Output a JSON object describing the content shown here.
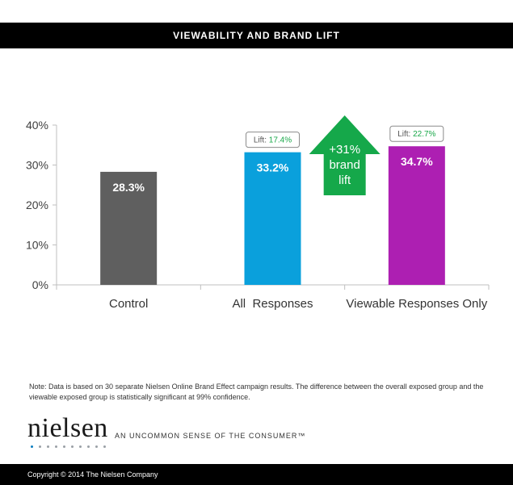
{
  "header": {
    "title": "VIEWABILITY AND BRAND LIFT"
  },
  "chart_data": {
    "type": "bar",
    "categories": [
      "Control",
      "All  Responses",
      "Viewable Responses Only"
    ],
    "values": [
      28.3,
      33.2,
      34.7
    ],
    "value_labels": [
      "28.3%",
      "33.2%",
      "34.7%"
    ],
    "colors": [
      "#5f5f5f",
      "#0aa0dc",
      "#ad1fb2"
    ],
    "ylim": [
      0,
      40
    ],
    "yticks": [
      0,
      10,
      20,
      30,
      40
    ],
    "ytick_labels": [
      "0%",
      "10%",
      "20%",
      "30%",
      "40%"
    ],
    "lift_callouts": [
      {
        "category_index": 1,
        "prefix": "Lift: ",
        "value": "17.4%"
      },
      {
        "category_index": 2,
        "prefix": "Lift: ",
        "value": "22.7%"
      }
    ],
    "arrow": {
      "lines": [
        "+31%",
        "brand",
        "lift"
      ],
      "color": "#15a84a"
    },
    "grid": false,
    "legend": "none"
  },
  "note": "Note: Data is based on 30 separate Nielsen Online Brand Effect campaign results. The difference between the overall exposed group and the viewable exposed group is statistically significant at 99% confidence.",
  "brand": {
    "logo_text": "nielsen",
    "tagline": "AN UNCOMMON SENSE OF THE CONSUMER™"
  },
  "footer": {
    "copyright": "Copyright © 2014 The Nielsen Company"
  }
}
